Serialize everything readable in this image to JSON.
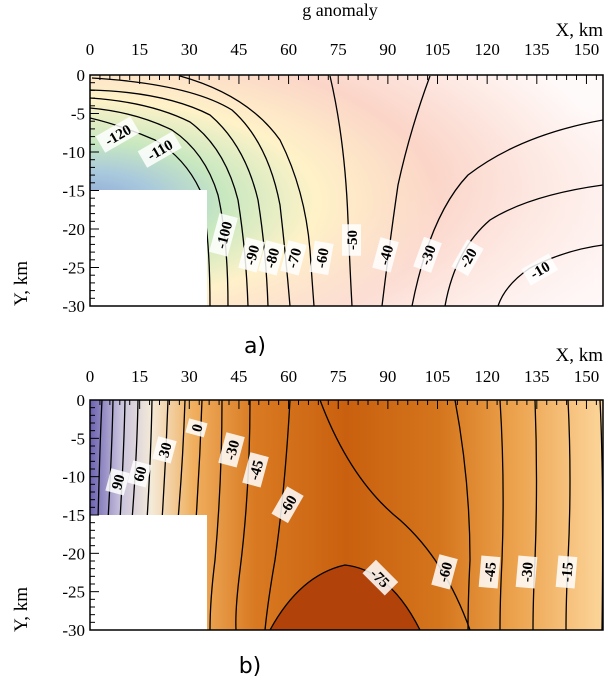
{
  "header": {
    "text": "g anomaly"
  },
  "chart_data": [
    {
      "type": "heatmap",
      "panel_label": "a)",
      "xlabel": "X, km",
      "ylabel": "Y, km",
      "xlim": [
        0,
        155
      ],
      "ylim": [
        -30,
        0
      ],
      "x_ticks": [
        0,
        15,
        30,
        45,
        60,
        75,
        90,
        105,
        120,
        135,
        150
      ],
      "y_ticks": [
        0,
        -5,
        -10,
        -15,
        -20,
        -25,
        -30
      ],
      "masked_region": {
        "x": [
          0,
          35
        ],
        "y": [
          -30,
          -15
        ]
      },
      "colors": {
        "low": "#8fa9d6",
        "mid_low": "#c8e8c0",
        "mid": "#fff2c8",
        "mid_high": "#fbd5c8",
        "high": "#fffafa"
      },
      "contour_labels": [
        "-120",
        "-110",
        "-100",
        "-90",
        "-80",
        "-70",
        "-60",
        "-50",
        "-40",
        "-30",
        "-20",
        "-10"
      ],
      "contour_values": [
        -120,
        -110,
        -100,
        -90,
        -80,
        -70,
        -60,
        -50,
        -40,
        -30,
        -20,
        -10
      ]
    },
    {
      "type": "heatmap",
      "panel_label": "b)",
      "xlabel": "X, km",
      "ylabel": "Y, km",
      "xlim": [
        0,
        155
      ],
      "ylim": [
        -30,
        0
      ],
      "x_ticks": [
        0,
        15,
        30,
        45,
        60,
        75,
        90,
        105,
        120,
        135,
        150
      ],
      "y_ticks": [
        0,
        -5,
        -10,
        -15,
        -20,
        -25,
        -30
      ],
      "masked_region": {
        "x": [
          0,
          35
        ],
        "y": [
          -30,
          -15
        ]
      },
      "colors": {
        "low": "#6b62b0",
        "mid_low": "#f4ead8",
        "mid": "#e08d2e",
        "mid_high": "#c9600f",
        "high": "#b0420a"
      },
      "contour_labels": [
        "90",
        "60",
        "30",
        "0",
        "-30",
        "-45",
        "-60",
        "-75",
        "-60",
        "-45",
        "-30",
        "-15"
      ],
      "contour_values": [
        90,
        60,
        30,
        0,
        -30,
        -45,
        -60,
        -75,
        -60,
        -45,
        -30,
        -15
      ]
    }
  ]
}
